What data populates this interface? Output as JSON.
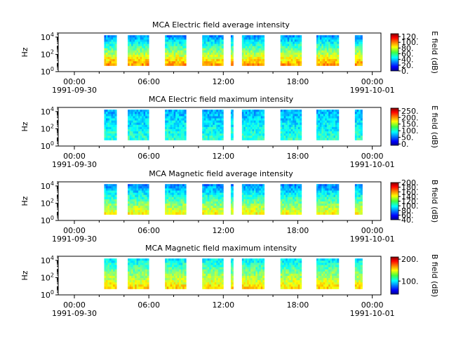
{
  "chart_data": [
    {
      "type": "heatmap",
      "title": "MCA  Electric field average intensity",
      "ylabel": "Hz",
      "yscale": "log",
      "ylim": [
        1,
        30000
      ],
      "y_ticks": [
        {
          "base": "10",
          "exp": "0"
        },
        {
          "base": "10",
          "exp": "2"
        },
        {
          "base": "10",
          "exp": "4"
        }
      ],
      "x_ticks": [
        "00:00",
        "06:00",
        "12:00",
        "18:00",
        "00:00"
      ],
      "x_dates": [
        "1991-09-30",
        "1991-10-01"
      ],
      "colorbar": {
        "label": "E field (dB)",
        "range": [
          0,
          130
        ],
        "ticks": [
          "0.",
          "20.",
          "40.",
          "60.",
          "80.",
          "100.",
          "120."
        ]
      },
      "segments_hours": [
        [
          2.4,
          3.4
        ],
        [
          4.3,
          6.0
        ],
        [
          7.3,
          9.0
        ],
        [
          10.3,
          12.0
        ],
        [
          12.6,
          12.8
        ],
        [
          13.5,
          15.3
        ],
        [
          16.6,
          18.3
        ],
        [
          19.5,
          21.3
        ],
        [
          22.6,
          23.2
        ]
      ]
    },
    {
      "type": "heatmap",
      "title": "MCA  Electric field maximum intensity",
      "ylabel": "Hz",
      "yscale": "log",
      "ylim": [
        1,
        30000
      ],
      "y_ticks": [
        {
          "base": "10",
          "exp": "0"
        },
        {
          "base": "10",
          "exp": "2"
        },
        {
          "base": "10",
          "exp": "4"
        }
      ],
      "x_ticks": [
        "00:00",
        "06:00",
        "12:00",
        "18:00",
        "00:00"
      ],
      "x_dates": [
        "1991-09-30",
        "1991-10-01"
      ],
      "colorbar": {
        "label": "E field (dB)",
        "range": [
          -10,
          270
        ],
        "ticks": [
          "0.",
          "50.",
          "100.",
          "150.",
          "200.",
          "250."
        ]
      },
      "segments_hours": [
        [
          2.4,
          3.4
        ],
        [
          4.3,
          6.0
        ],
        [
          7.3,
          9.0
        ],
        [
          10.3,
          12.0
        ],
        [
          12.6,
          12.8
        ],
        [
          13.5,
          15.3
        ],
        [
          16.6,
          18.3
        ],
        [
          19.5,
          21.3
        ],
        [
          22.6,
          23.2
        ]
      ]
    },
    {
      "type": "heatmap",
      "title": "MCA  Magnetic field average intensity",
      "ylabel": "Hz",
      "yscale": "log",
      "ylim": [
        1,
        30000
      ],
      "y_ticks": [
        {
          "base": "10",
          "exp": "0"
        },
        {
          "base": "10",
          "exp": "2"
        },
        {
          "base": "10",
          "exp": "4"
        }
      ],
      "x_ticks": [
        "00:00",
        "06:00",
        "12:00",
        "18:00",
        "00:00"
      ],
      "x_dates": [
        "1991-09-30",
        "1991-10-01"
      ],
      "colorbar": {
        "label": "B field (dB)",
        "range": [
          40,
          200
        ],
        "ticks": [
          "40.",
          "60.",
          "80.",
          "100.",
          "120.",
          "140.",
          "160.",
          "180.",
          "200."
        ]
      },
      "segments_hours": [
        [
          2.4,
          3.4
        ],
        [
          4.3,
          6.0
        ],
        [
          7.3,
          9.0
        ],
        [
          10.3,
          12.0
        ],
        [
          12.6,
          12.8
        ],
        [
          13.5,
          15.3
        ],
        [
          16.6,
          18.3
        ],
        [
          19.5,
          21.3
        ],
        [
          22.6,
          23.2
        ]
      ]
    },
    {
      "type": "heatmap",
      "title": "MCA  Magnetic field maximum intensity",
      "ylabel": "Hz",
      "yscale": "log",
      "ylim": [
        1,
        30000
      ],
      "y_ticks": [
        {
          "base": "10",
          "exp": "0"
        },
        {
          "base": "10",
          "exp": "2"
        },
        {
          "base": "10",
          "exp": "4"
        }
      ],
      "x_ticks": [
        "00:00",
        "06:00",
        "12:00",
        "18:00",
        "00:00"
      ],
      "x_dates": [
        "1991-09-30",
        "1991-10-01"
      ],
      "colorbar": {
        "label": "B field (dB)",
        "range": [
          40,
          210
        ],
        "ticks": [
          "100.",
          "200."
        ]
      },
      "segments_hours": [
        [
          2.4,
          3.4
        ],
        [
          4.3,
          6.0
        ],
        [
          7.3,
          9.0
        ],
        [
          10.3,
          12.0
        ],
        [
          12.6,
          12.8
        ],
        [
          13.5,
          15.3
        ],
        [
          16.6,
          18.3
        ],
        [
          19.5,
          21.3
        ],
        [
          22.6,
          23.2
        ]
      ]
    }
  ]
}
